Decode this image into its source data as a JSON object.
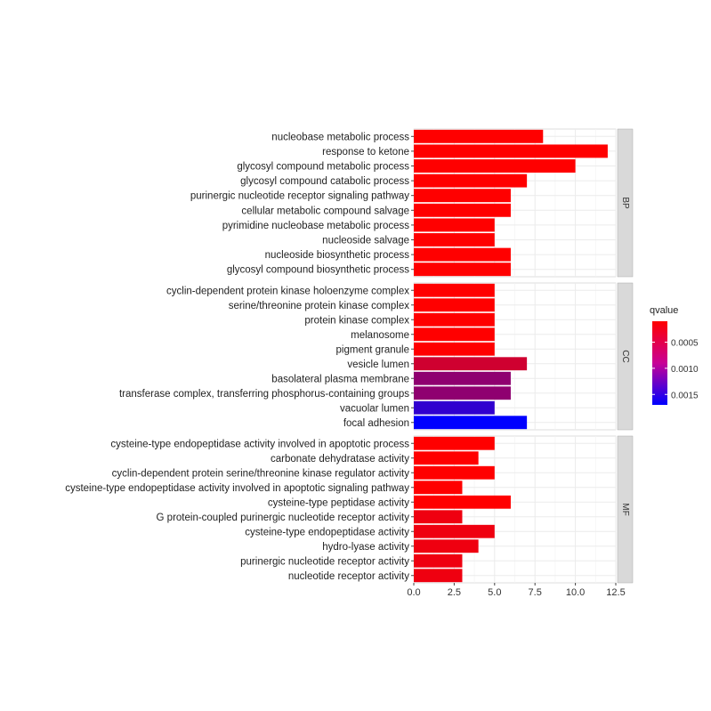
{
  "chart_data": {
    "type": "bar",
    "orientation": "horizontal",
    "facets": [
      {
        "name": "BP",
        "categories": [
          "nucleobase metabolic process",
          "response to ketone",
          "glycosyl compound metabolic process",
          "glycosyl compound catabolic process",
          "purinergic nucleotide receptor signaling pathway",
          "cellular metabolic compound salvage",
          "pyrimidine nucleobase metabolic process",
          "nucleoside salvage",
          "nucleoside biosynthetic process",
          "glycosyl compound biosynthetic process"
        ],
        "values": [
          8,
          12,
          10,
          7,
          6,
          6,
          5,
          5,
          6,
          6
        ],
        "qvalues": [
          0.0001,
          0.0001,
          0.0001,
          0.0001,
          0.0001,
          0.0001,
          0.0001,
          0.0001,
          0.0001,
          0.0001
        ]
      },
      {
        "name": "CC",
        "categories": [
          "cyclin-dependent protein kinase holoenzyme complex",
          "serine/threonine protein kinase complex",
          "protein kinase complex",
          "melanosome",
          "pigment granule",
          "vesicle lumen",
          "basolateral plasma membrane",
          "transferase complex, transferring phosphorus-containing groups",
          "vacuolar lumen",
          "focal adhesion"
        ],
        "values": [
          5,
          5,
          5,
          5,
          5,
          7,
          6,
          6,
          5,
          7
        ],
        "qvalues": [
          0.0001,
          0.0001,
          0.0001,
          0.0001,
          0.0001,
          0.0004,
          0.0008,
          0.0008,
          0.0014,
          0.0017
        ]
      },
      {
        "name": "MF",
        "categories": [
          "cysteine-type endopeptidase activity involved in apoptotic process",
          "carbonate dehydratase activity",
          "cyclin-dependent protein serine/threonine kinase regulator activity",
          "cysteine-type endopeptidase activity involved in apoptotic signaling pathway",
          "cysteine-type peptidase activity",
          "G protein-coupled purinergic nucleotide receptor activity",
          "cysteine-type endopeptidase activity",
          "hydro-lyase activity",
          "purinergic nucleotide receptor activity",
          "nucleotide receptor activity"
        ],
        "values": [
          5,
          4,
          5,
          3,
          6,
          3,
          5,
          4,
          3,
          3
        ],
        "qvalues": [
          0.0001,
          0.0001,
          0.0001,
          0.0001,
          0.0001,
          0.0002,
          0.0002,
          0.0002,
          0.0002,
          0.0002
        ]
      }
    ],
    "x_ticks": [
      "0.0",
      "2.5",
      "5.0",
      "7.5",
      "10.0",
      "12.5"
    ],
    "xlim": [
      0,
      12.5
    ],
    "legend": {
      "title": "qvalue",
      "ticks": [
        "0.0005",
        "0.0010",
        "0.0015"
      ],
      "tick_values": [
        0.0005,
        0.001,
        0.0015
      ],
      "range": [
        0.0001,
        0.0017
      ],
      "color_low": "#ff0000",
      "color_high": "#0000ff",
      "placement": "right"
    },
    "grid": true,
    "panel_background": "#ffffff",
    "grid_color": "#ebebeb",
    "strip_background": "#d9d9d9"
  }
}
